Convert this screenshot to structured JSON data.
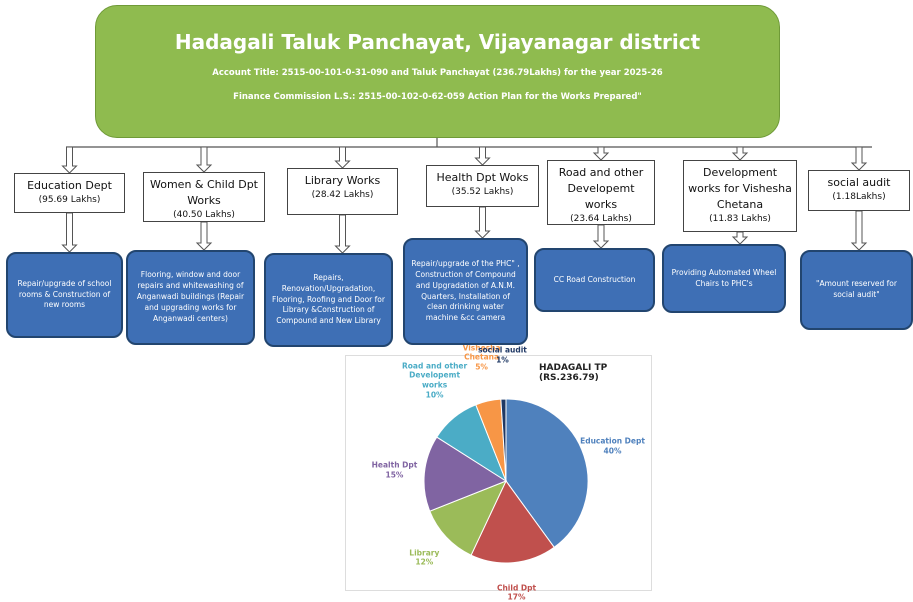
{
  "header": {
    "title": "Hadagali Taluk Panchayat, Vijayanagar district",
    "account": "Account Title: 2515-00-101-0-31-090 and Taluk Panchayat (236.79Lakhs) for the year 2025-26",
    "finance": "Finance Commission L.S.: 2515-00-102-0-62-059 Action Plan for the Works Prepared\""
  },
  "departments": [
    {
      "name": "Education Dept",
      "amount": "(95.69 Lakhs)",
      "description": "Repair/upgrade of school rooms & Construction of new rooms"
    },
    {
      "name": "Women & Child Dpt Works",
      "amount": "(40.50 Lakhs)",
      "description": "Flooring, window and door repairs and whitewashing of Anganwadi buildings (Repair and upgrading works for Anganwadi centers)"
    },
    {
      "name": "Library Works",
      "amount": "(28.42 Lakhs)",
      "description": "Repairs, Renovation/Upgradation, Flooring, Roofing and Door for Library &Construction of Compound and New Library"
    },
    {
      "name": "Health Dpt Woks",
      "amount": "(35.52 Lakhs)",
      "description": "Repair/upgrade of the PHC\" , Construction of Compound and Upgradation of A.N.M. Quarters, Installation of clean drinking water machine &cc camera"
    },
    {
      "name": "Road and other Developemt works",
      "amount": "(23.64 Lakhs)",
      "description": "CC Road Construction"
    },
    {
      "name": "Development works for Vishesha Chetana",
      "amount": "(11.83 Lakhs)",
      "description": "Providing Automated Wheel Chairs to PHC's"
    },
    {
      "name": "social audit",
      "amount": "(1.18Lakhs)",
      "description": "\"Amount reserved for social audit\""
    }
  ],
  "chart_data": {
    "type": "pie",
    "title": "HADAGALI TP (RS.236.79)",
    "categories": [
      "Education Dept",
      "Child Dpt",
      "Library",
      "Health Dpt",
      "Road and other Developemt works",
      "Vishesha Chetana",
      "social audit"
    ],
    "values": [
      40,
      17,
      12,
      15,
      10,
      5,
      1
    ],
    "value_labels": [
      "40%",
      "17%",
      "12%",
      "15%",
      "10%",
      "5%",
      "1%"
    ],
    "colors": [
      "#4f81bd",
      "#c0504d",
      "#9bbb59",
      "#8064a2",
      "#4bacc6",
      "#f79646",
      "#1f3864"
    ]
  }
}
